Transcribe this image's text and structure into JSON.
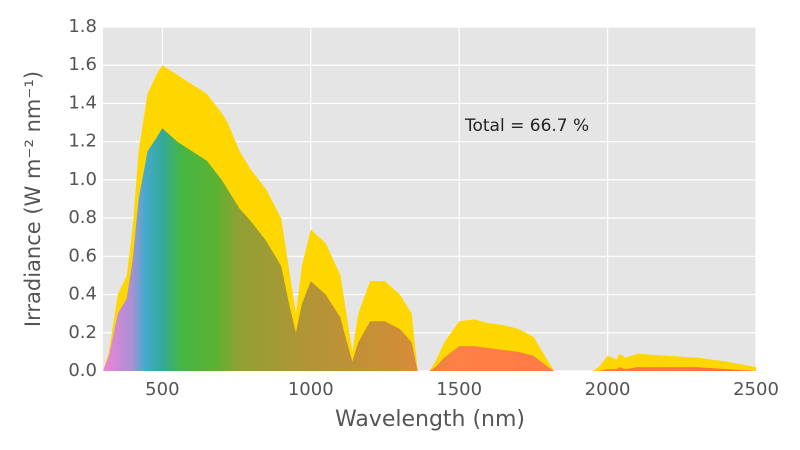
{
  "chart_data": {
    "type": "area",
    "xlabel": "Wavelength (nm)",
    "ylabel": "Irradiance  (W m⁻² nm⁻¹)",
    "annotation": "Total = 66.7 %",
    "x": [
      300,
      320,
      350,
      380,
      400,
      420,
      450,
      480,
      500,
      550,
      600,
      650,
      700,
      720,
      760,
      800,
      850,
      900,
      930,
      950,
      970,
      1000,
      1050,
      1100,
      1120,
      1140,
      1160,
      1200,
      1250,
      1300,
      1340,
      1360,
      1400,
      1420,
      1450,
      1500,
      1550,
      1600,
      1650,
      1700,
      1750,
      1800,
      1820,
      1950,
      1970,
      2000,
      2030,
      2040,
      2060,
      2100,
      2200,
      2300,
      2400,
      2500
    ],
    "series": [
      {
        "color": "#ffd700",
        "values": [
          0,
          0.1,
          0.4,
          0.5,
          0.75,
          1.15,
          1.45,
          1.55,
          1.6,
          1.55,
          1.5,
          1.45,
          1.35,
          1.3,
          1.15,
          1.05,
          0.95,
          0.8,
          0.5,
          0.3,
          0.55,
          0.74,
          0.67,
          0.5,
          0.3,
          0.1,
          0.3,
          0.47,
          0.47,
          0.4,
          0.3,
          0,
          0,
          0.05,
          0.15,
          0.26,
          0.27,
          0.25,
          0.24,
          0.22,
          0.18,
          0.05,
          0,
          0,
          0.02,
          0.08,
          0.06,
          0.09,
          0.07,
          0.09,
          0.08,
          0.07,
          0.05,
          0.02
        ]
      },
      {
        "color_stops": [
          {
            "x": 300,
            "color": "#f07fe0"
          },
          {
            "x": 400,
            "color": "#a08de0"
          },
          {
            "x": 440,
            "color": "#3ca8d8"
          },
          {
            "x": 500,
            "color": "#2aa6a0"
          },
          {
            "x": 560,
            "color": "#3bb44a"
          },
          {
            "x": 680,
            "color": "#52b034"
          },
          {
            "x": 760,
            "color": "#8a9e36"
          },
          {
            "x": 1000,
            "color": "#b0903a"
          },
          {
            "x": 1300,
            "color": "#cc8a3a"
          },
          {
            "x": 1500,
            "color": "#ff7b4a"
          },
          {
            "x": 2500,
            "color": "#ff6a4a"
          }
        ],
        "values": [
          0,
          0.08,
          0.3,
          0.38,
          0.58,
          0.9,
          1.15,
          1.22,
          1.27,
          1.2,
          1.15,
          1.1,
          1.0,
          0.95,
          0.85,
          0.78,
          0.68,
          0.55,
          0.33,
          0.2,
          0.35,
          0.47,
          0.4,
          0.28,
          0.16,
          0.05,
          0.15,
          0.26,
          0.26,
          0.22,
          0.15,
          0,
          0,
          0.02,
          0.07,
          0.13,
          0.13,
          0.12,
          0.11,
          0.1,
          0.08,
          0.02,
          0,
          0,
          0,
          0.01,
          0.01,
          0.02,
          0.01,
          0.02,
          0.02,
          0.02,
          0.01,
          0
        ]
      }
    ],
    "xlim": [
      300,
      2500
    ],
    "xticks": [
      500,
      1000,
      1500,
      2000,
      2500
    ],
    "ylim": [
      0,
      1.8
    ],
    "yticks": [
      {
        "value": 0,
        "label": "0.0"
      },
      {
        "value": 0.2,
        "label": "0.2"
      },
      {
        "value": 0.4,
        "label": "0.4"
      },
      {
        "value": 0.6,
        "label": "0.6"
      },
      {
        "value": 0.8,
        "label": "0.8"
      },
      {
        "value": 1.0,
        "label": "1.0"
      },
      {
        "value": 1.2,
        "label": "1.2"
      },
      {
        "value": 1.4,
        "label": "1.4"
      },
      {
        "value": 1.6,
        "label": "1.6"
      },
      {
        "value": 1.8,
        "label": "1.8"
      }
    ],
    "grid": true
  }
}
